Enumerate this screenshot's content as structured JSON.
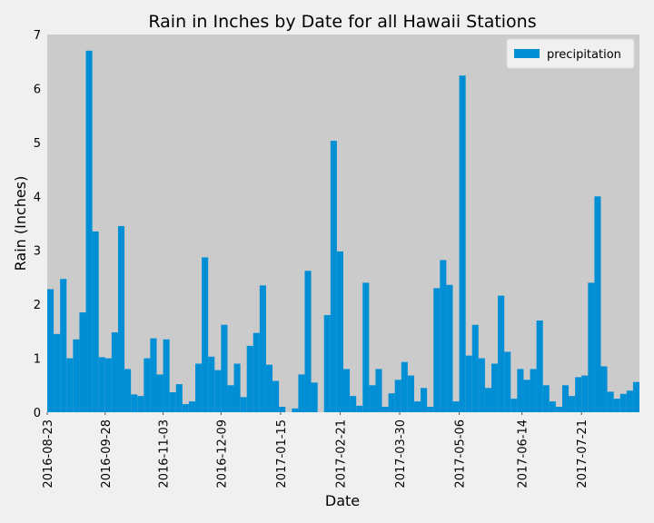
{
  "chart_data": {
    "type": "bar",
    "title": "Rain in Inches by Date for all Hawaii Stations",
    "xlabel": "Date",
    "ylabel": "Rain (Inches)",
    "x": [
      "2016-08-23",
      "2016-08-27",
      "2016-08-31",
      "2016-09-04",
      "2016-09-08",
      "2016-09-12",
      "2016-09-16",
      "2016-09-20",
      "2016-09-24",
      "2016-09-28",
      "2016-10-02",
      "2016-10-06",
      "2016-10-10",
      "2016-10-14",
      "2016-10-18",
      "2016-10-22",
      "2016-10-26",
      "2016-10-30",
      "2016-11-03",
      "2016-11-07",
      "2016-11-11",
      "2016-11-15",
      "2016-11-19",
      "2016-11-23",
      "2016-11-27",
      "2016-12-01",
      "2016-12-05",
      "2016-12-09",
      "2016-12-13",
      "2016-12-17",
      "2016-12-21",
      "2016-12-25",
      "2016-12-29",
      "2017-01-02",
      "2017-01-06",
      "2017-01-10",
      "2017-01-14",
      "2017-01-18",
      "2017-01-22",
      "2017-01-26",
      "2017-01-30",
      "2017-02-03",
      "2017-02-07",
      "2017-02-11",
      "2017-02-15",
      "2017-02-19",
      "2017-02-23",
      "2017-02-27",
      "2017-03-03",
      "2017-03-07",
      "2017-03-11",
      "2017-03-15",
      "2017-03-19",
      "2017-03-23",
      "2017-03-27",
      "2017-03-31",
      "2017-04-04",
      "2017-04-08",
      "2017-04-12",
      "2017-04-16",
      "2017-04-20",
      "2017-04-24",
      "2017-04-28",
      "2017-05-02",
      "2017-05-06",
      "2017-05-10",
      "2017-05-14",
      "2017-05-18",
      "2017-05-22",
      "2017-05-26",
      "2017-05-30",
      "2017-06-03",
      "2017-06-07",
      "2017-06-11",
      "2017-06-15",
      "2017-06-19",
      "2017-06-23",
      "2017-06-27",
      "2017-07-01",
      "2017-07-05",
      "2017-07-09",
      "2017-07-13",
      "2017-07-17",
      "2017-07-21",
      "2017-07-25",
      "2017-07-29",
      "2017-08-02",
      "2017-08-06",
      "2017-08-10",
      "2017-08-14",
      "2017-08-18",
      "2017-08-22"
    ],
    "series": [
      {
        "name": "precipitation",
        "color": "#008fd5",
        "values": [
          2.28,
          1.45,
          2.47,
          1.0,
          1.35,
          1.85,
          6.7,
          3.35,
          1.02,
          1.0,
          1.48,
          3.45,
          0.8,
          0.33,
          0.3,
          1.0,
          1.37,
          0.7,
          1.35,
          0.37,
          0.52,
          0.15,
          0.2,
          0.9,
          2.87,
          1.03,
          0.78,
          1.62,
          0.5,
          0.9,
          0.28,
          1.23,
          1.47,
          2.35,
          0.88,
          0.58,
          0.1,
          0,
          0.07,
          0.7,
          2.62,
          0.55,
          0,
          1.8,
          5.03,
          2.98,
          0.8,
          0.3,
          0.12,
          2.4,
          0.5,
          0.8,
          0.1,
          0.35,
          0.6,
          0.93,
          0.68,
          0.2,
          0.45,
          0.1,
          2.3,
          2.82,
          2.36,
          0.2,
          6.24,
          1.05,
          1.62,
          1.0,
          0.45,
          0.9,
          2.16,
          1.12,
          0.25,
          0.8,
          0.6,
          0.8,
          1.7,
          0.5,
          0.2,
          0.1,
          0.5,
          0.3,
          0.65,
          0.68,
          2.4,
          4.0,
          0.85,
          0.38,
          0.25,
          0.34,
          0.4,
          0.56
        ]
      }
    ],
    "xlim": [
      "2016-08-23",
      "2017-08-26"
    ],
    "xticks": [
      "2016-08-23",
      "2016-09-28",
      "2016-11-03",
      "2016-12-09",
      "2017-01-15",
      "2017-02-21",
      "2017-03-30",
      "2017-05-06",
      "2017-06-14",
      "2017-07-21"
    ],
    "ylim": [
      0,
      7
    ],
    "yticks": [
      0,
      1,
      2,
      3,
      4,
      5,
      6,
      7
    ],
    "grid": false,
    "legend": "upper right"
  }
}
